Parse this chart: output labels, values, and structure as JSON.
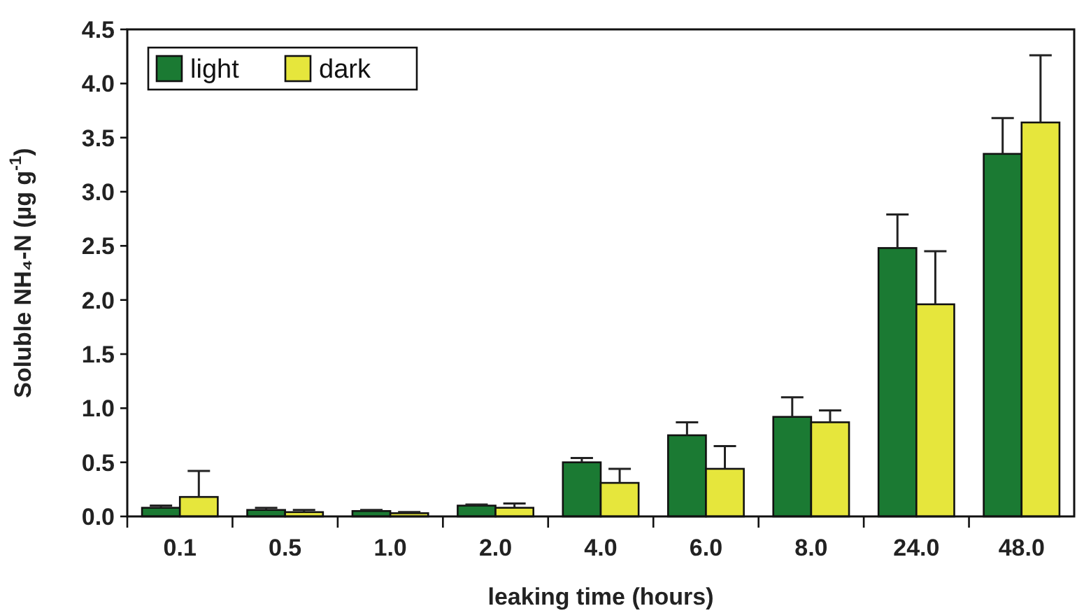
{
  "chart_data": {
    "type": "bar",
    "xlabel": "leaking time (hours)",
    "ylabel": "Soluble NH₄-N (µg g$^{-1}$)",
    "categories": [
      "0.1",
      "0.5",
      "1.0",
      "2.0",
      "4.0",
      "6.0",
      "8.0",
      "24.0",
      "48.0"
    ],
    "series": [
      {
        "name": "light",
        "color": "#1b7a33",
        "values": [
          0.08,
          0.06,
          0.05,
          0.1,
          0.5,
          0.75,
          0.92,
          2.48,
          3.35
        ],
        "errors": [
          [
            0.08,
            0.1
          ],
          [
            0.06,
            0.08
          ],
          [
            0.05,
            0.06
          ],
          [
            0.1,
            0.11
          ],
          [
            0.5,
            0.54
          ],
          [
            0.75,
            0.87
          ],
          [
            0.92,
            1.1
          ],
          [
            2.48,
            2.79
          ],
          [
            3.35,
            3.68
          ]
        ]
      },
      {
        "name": "dark",
        "color": "#e6e63c",
        "values": [
          0.18,
          0.04,
          0.03,
          0.08,
          0.31,
          0.44,
          0.87,
          1.96,
          3.64
        ],
        "errors": [
          [
            0.18,
            0.42
          ],
          [
            0.04,
            0.06
          ],
          [
            0.03,
            0.04
          ],
          [
            0.08,
            0.12
          ],
          [
            0.31,
            0.44
          ],
          [
            0.44,
            0.65
          ],
          [
            0.87,
            0.98
          ],
          [
            1.96,
            2.45
          ],
          [
            3.64,
            4.26
          ]
        ]
      }
    ],
    "ylim": [
      0,
      4.5
    ],
    "yticks": [
      {
        "value": 0,
        "label": "0.0"
      },
      0.5,
      {
        "value": 1,
        "label": "1.0"
      },
      1.5,
      {
        "value": 2,
        "label": "2.0"
      },
      2.5,
      {
        "value": 3,
        "label": "3.0"
      },
      3.5,
      {
        "value": 4,
        "label": "4.0"
      },
      4.5
    ],
    "legend": "top left",
    "grid": false
  }
}
